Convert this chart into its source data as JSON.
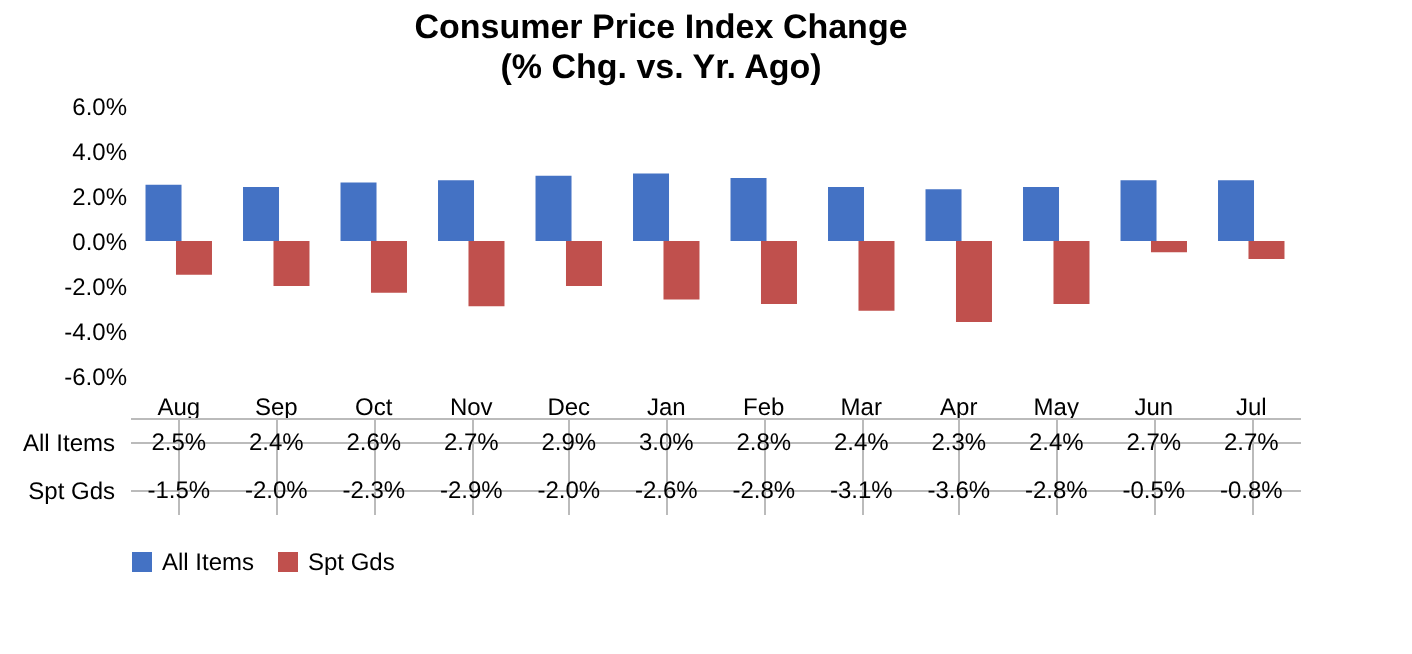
{
  "chart_data": {
    "type": "bar",
    "title": "Consumer Price Index Change",
    "subtitle": "(% Chg. vs. Yr. Ago)",
    "categories": [
      "Aug",
      "Sep",
      "Oct",
      "Nov",
      "Dec",
      "Jan",
      "Feb",
      "Mar",
      "Apr",
      "May",
      "Jun",
      "Jul"
    ],
    "series": [
      {
        "name": "All Items",
        "color": "#4472c4",
        "values": [
          2.5,
          2.4,
          2.6,
          2.7,
          2.9,
          3.0,
          2.8,
          2.4,
          2.3,
          2.4,
          2.7,
          2.7
        ],
        "value_labels": [
          "2.5%",
          "2.4%",
          "2.6%",
          "2.7%",
          "2.9%",
          "3.0%",
          "2.8%",
          "2.4%",
          "2.3%",
          "2.4%",
          "2.7%",
          "2.7%"
        ]
      },
      {
        "name": "Spt Gds",
        "color": "#c0504d",
        "values": [
          -1.5,
          -2.0,
          -2.3,
          -2.9,
          -2.0,
          -2.6,
          -2.8,
          -3.1,
          -3.6,
          -2.8,
          -0.5,
          -0.8
        ],
        "value_labels": [
          "-1.5%",
          "-2.0%",
          "-2.3%",
          "-2.9%",
          "-2.0%",
          "-2.6%",
          "-2.8%",
          "-3.1%",
          "-3.6%",
          "-2.8%",
          "-0.5%",
          "-0.8%"
        ]
      }
    ],
    "ylim": [
      -6,
      6
    ],
    "yticks": [
      {
        "value": -6,
        "label": "-6.0%"
      },
      {
        "value": -4,
        "label": "-4.0%"
      },
      {
        "value": -2,
        "label": "-2.0%"
      },
      {
        "value": 0,
        "label": "0.0%"
      },
      {
        "value": 2,
        "label": "2.0%"
      },
      {
        "value": 4,
        "label": "4.0%"
      },
      {
        "value": 6,
        "label": "6.0%"
      }
    ],
    "grid": false,
    "legend": "bottom"
  }
}
